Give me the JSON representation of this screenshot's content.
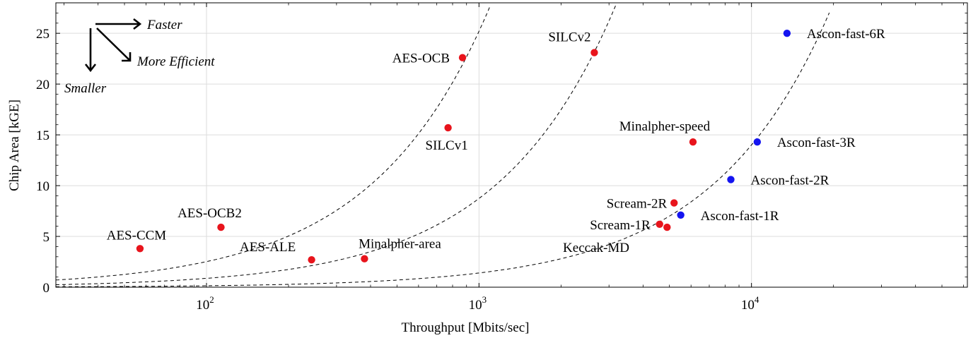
{
  "chart_data": {
    "type": "scatter",
    "title": "",
    "xlabel": "Throughput [Mbits/sec]",
    "ylabel": "Chip Area [kGE]",
    "xscale": "log",
    "xlim": [
      28,
      62000
    ],
    "ylim": [
      0,
      28
    ],
    "grid": true,
    "x_ticks": [
      {
        "value": 100,
        "base": "10",
        "exp": "2"
      },
      {
        "value": 1000,
        "base": "10",
        "exp": "3"
      },
      {
        "value": 10000,
        "base": "10",
        "exp": "4"
      }
    ],
    "y_ticks": [
      "0",
      "5",
      "10",
      "15",
      "20",
      "25"
    ],
    "series": [
      {
        "color": "#e8141c",
        "points": [
          {
            "label": "AES-CCM",
            "x": 57,
            "y": 3.8
          },
          {
            "label": "AES-OCB2",
            "x": 113,
            "y": 5.9
          },
          {
            "label": "AES-ALE",
            "x": 243,
            "y": 2.7
          },
          {
            "label": "Minalpher-area",
            "x": 380,
            "y": 2.8
          },
          {
            "label": "SILCv1",
            "x": 770,
            "y": 15.7
          },
          {
            "label": "AES-OCB",
            "x": 870,
            "y": 22.6
          },
          {
            "label": "SILCv2",
            "x": 2650,
            "y": 23.1
          },
          {
            "label": "Minalpher-speed",
            "x": 6100,
            "y": 14.3
          },
          {
            "label": "Scream-2R",
            "x": 5200,
            "y": 8.3
          },
          {
            "label": "Scream-1R",
            "x": 4600,
            "y": 6.2
          },
          {
            "label": "",
            "x": 4900,
            "y": 5.9
          }
        ]
      },
      {
        "color": "#1414f0",
        "points": [
          {
            "label": "Ascon-fast-6R",
            "x": 13500,
            "y": 25.0
          },
          {
            "label": "Ascon-fast-3R",
            "x": 10500,
            "y": 14.3
          },
          {
            "label": "Ascon-fast-2R",
            "x": 8400,
            "y": 10.6
          },
          {
            "label": "Ascon-fast-1R",
            "x": 5500,
            "y": 7.1
          }
        ]
      }
    ],
    "curves": [
      {
        "k": 0.0252,
        "x_end": 1650
      },
      {
        "k": 0.00874,
        "x_end": 3180
      },
      {
        "k": 0.0014,
        "x_end": 19300
      }
    ],
    "curve_label": "Keccak-MD",
    "annotations": {
      "faster": "Faster",
      "smaller": "Smaller",
      "efficient": "More Efficient"
    }
  }
}
